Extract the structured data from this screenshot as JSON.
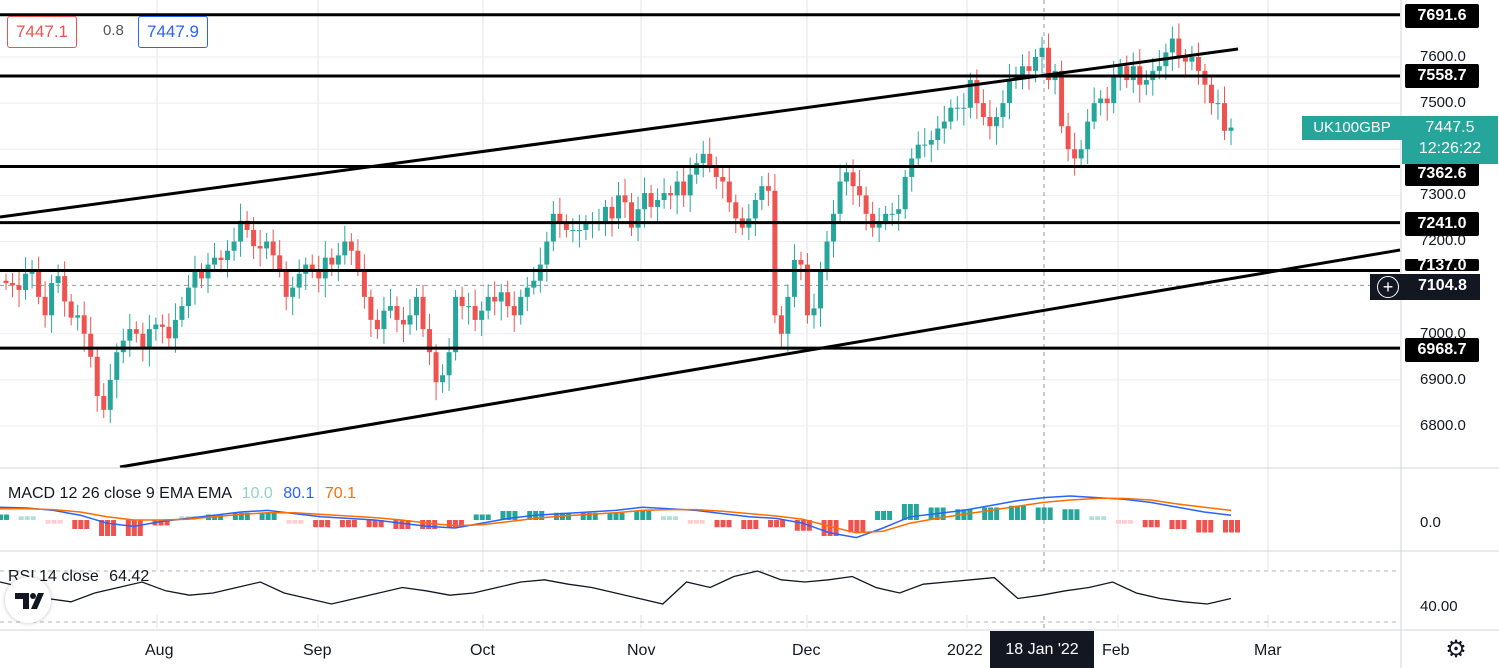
{
  "header": {
    "bid": "7447.1",
    "spread": "0.8",
    "ask": "7447.9"
  },
  "symbol": {
    "name": "UK100GBP",
    "last": "7447.5",
    "countdown": "12:26:22"
  },
  "crosshair": {
    "price": "7104.8",
    "date": "18 Jan '22"
  },
  "y_ticks": [
    "7600.0",
    "7500.0",
    "7400.0",
    "7300.0",
    "7200.0",
    "7000.0",
    "6900.0",
    "6800.0"
  ],
  "x_ticks": [
    "Aug",
    "Sep",
    "Oct",
    "Nov",
    "Dec",
    "2022",
    "Feb",
    "Mar"
  ],
  "h_levels": [
    {
      "label": "7691.6"
    },
    {
      "label": "7558.7"
    },
    {
      "label": "7362.6"
    },
    {
      "label": "7241.0"
    },
    {
      "label": "7137.0"
    },
    {
      "label": "6968.7"
    }
  ],
  "macd": {
    "title": "MACD 12 26 close 9 EMA EMA",
    "hist": "10.0",
    "macd": "80.1",
    "signal": "70.1",
    "zero_tick": "0.0"
  },
  "rsi": {
    "title": "RSI 14 close",
    "value": "64.42",
    "tick": "40.00"
  },
  "colors": {
    "up": "#26a69a",
    "down": "#ef5350",
    "macd_line": "#2962ff",
    "signal_line": "#ff6d00",
    "level_line": "#000000"
  },
  "icons": {
    "settings": "gear-icon",
    "logo": "tradingview-logo-icon",
    "crosshair": "plus-circle-icon"
  },
  "chart_data": {
    "type": "candlestick",
    "x_ticks": [
      "Aug",
      "Sep",
      "Oct",
      "Nov",
      "Dec",
      "2022",
      "Feb",
      "Mar"
    ],
    "ylim": [
      6750,
      7720
    ],
    "close": [
      7110,
      7105,
      7095,
      7130,
      7140,
      7080,
      7040,
      7110,
      7125,
      7070,
      7035,
      7040,
      7000,
      6950,
      6865,
      6835,
      6900,
      6960,
      6985,
      7010,
      7000,
      6970,
      7010,
      7020,
      7015,
      6990,
      7030,
      7060,
      7100,
      7135,
      7120,
      7150,
      7165,
      7160,
      7180,
      7200,
      7245,
      7225,
      7190,
      7185,
      7200,
      7170,
      7140,
      7080,
      7100,
      7130,
      7150,
      7140,
      7120,
      7165,
      7150,
      7170,
      7200,
      7180,
      7140,
      7080,
      7030,
      7010,
      7050,
      7060,
      7030,
      7020,
      7040,
      7080,
      7010,
      6960,
      6895,
      6910,
      6960,
      7080,
      7060,
      7060,
      7030,
      7050,
      7080,
      7070,
      7090,
      7060,
      7040,
      7080,
      7100,
      7115,
      7150,
      7200,
      7260,
      7240,
      7225,
      7225,
      7225,
      7240,
      7240,
      7240,
      7275,
      7250,
      7300,
      7285,
      7230,
      7270,
      7305,
      7275,
      7290,
      7305,
      7300,
      7330,
      7300,
      7345,
      7370,
      7390,
      7365,
      7340,
      7330,
      7285,
      7250,
      7230,
      7250,
      7290,
      7320,
      7310,
      7040,
      7000,
      7080,
      7160,
      7150,
      7040,
      7055,
      7140,
      7200,
      7260,
      7330,
      7350,
      7320,
      7300,
      7260,
      7230,
      7240,
      7260,
      7260,
      7270,
      7340,
      7380,
      7410,
      7410,
      7420,
      7445,
      7460,
      7490,
      7490,
      7490,
      7550,
      7500,
      7470,
      7450,
      7470,
      7500,
      7550,
      7560,
      7580,
      7570,
      7600,
      7620,
      7550,
      7570,
      7450,
      7400,
      7380,
      7400,
      7460,
      7500,
      7510,
      7500,
      7560,
      7580,
      7550,
      7580,
      7540,
      7550,
      7570,
      7580,
      7610,
      7640,
      7600,
      7590,
      7600,
      7570,
      7540,
      7500,
      7500,
      7440,
      7447
    ],
    "macd": [
      80,
      75,
      60,
      30,
      -20,
      -40,
      -10,
      10,
      30,
      50,
      60,
      40,
      20,
      10,
      0,
      -20,
      -40,
      -50,
      -20,
      10,
      30,
      40,
      50,
      60,
      80,
      70,
      60,
      40,
      20,
      10,
      -20,
      -80,
      -110,
      -50,
      20,
      40,
      60,
      90,
      120,
      140,
      150,
      140,
      130,
      110,
      80,
      50,
      30
    ],
    "signal": [
      70,
      70,
      65,
      50,
      20,
      0,
      0,
      5,
      20,
      35,
      45,
      45,
      35,
      25,
      15,
      0,
      -20,
      -35,
      -30,
      -10,
      10,
      25,
      35,
      45,
      60,
      65,
      65,
      55,
      40,
      25,
      5,
      -40,
      -80,
      -70,
      -20,
      10,
      35,
      60,
      85,
      110,
      125,
      135,
      135,
      125,
      100,
      80,
      60
    ],
    "rsi": [
      60,
      55,
      45,
      42,
      50,
      55,
      60,
      52,
      48,
      50,
      55,
      60,
      50,
      45,
      40,
      45,
      50,
      55,
      52,
      48,
      50,
      55,
      60,
      62,
      58,
      55,
      50,
      45,
      40,
      60,
      55,
      65,
      70,
      62,
      60,
      62,
      65,
      55,
      50,
      58,
      60,
      62,
      64,
      45,
      48,
      52,
      55,
      60,
      50,
      45,
      42,
      40,
      45
    ]
  }
}
